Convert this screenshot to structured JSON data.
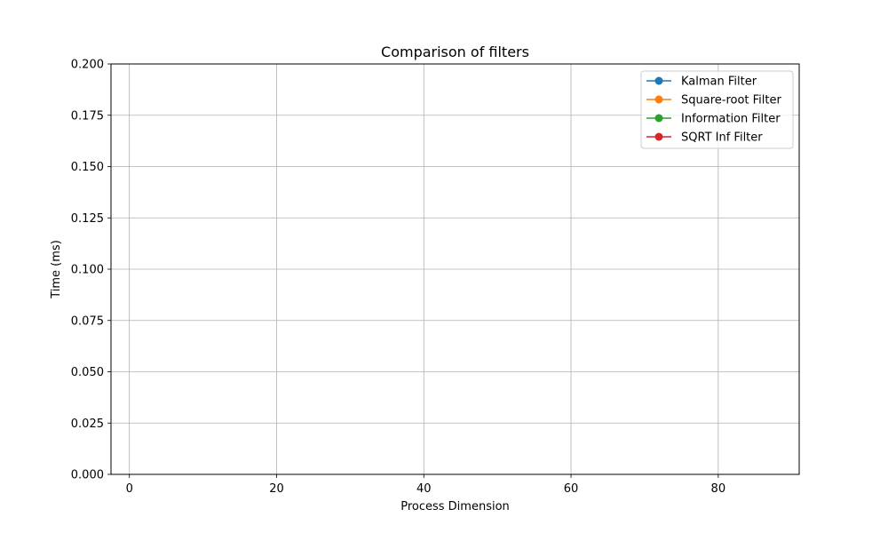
{
  "chart_data": {
    "type": "line",
    "title": "Comparison of filters",
    "xlabel": "Process Dimension",
    "ylabel": "Time (ms)",
    "xlim": [
      -2.5,
      91
    ],
    "ylim": [
      0,
      0.2
    ],
    "xticks": [
      0,
      20,
      40,
      60,
      80
    ],
    "xtick_labels": [
      "0",
      "20",
      "40",
      "60",
      "80"
    ],
    "yticks": [
      0,
      0.025,
      0.05,
      0.075,
      0.1,
      0.125,
      0.15,
      0.175,
      0.2
    ],
    "ytick_labels": [
      "0.000",
      "0.025",
      "0.050",
      "0.075",
      "0.100",
      "0.125",
      "0.150",
      "0.175",
      "0.200"
    ],
    "grid": true,
    "legend_position": "top-right",
    "series": [
      {
        "name": "Kalman Filter",
        "color": "#1f77b4",
        "marker": "circle",
        "x": [],
        "y": []
      },
      {
        "name": "Square-root Filter",
        "color": "#ff7f0e",
        "marker": "circle",
        "x": [],
        "y": []
      },
      {
        "name": "Information Filter",
        "color": "#2ca02c",
        "marker": "circle",
        "x": [],
        "y": []
      },
      {
        "name": "SQRT Inf Filter",
        "color": "#d62728",
        "marker": "circle",
        "x": [],
        "y": []
      }
    ]
  }
}
